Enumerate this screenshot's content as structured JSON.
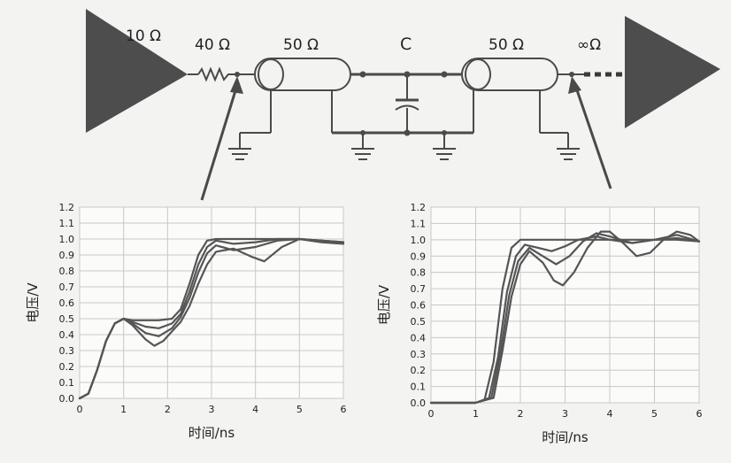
{
  "circuit": {
    "driver_resistance": "10 Ω",
    "series_resistor": "40 Ω",
    "line1_impedance": "50 Ω",
    "capacitor": "C",
    "line2_impedance": "50 Ω",
    "load_impedance": "∞Ω"
  },
  "chart_data": [
    {
      "type": "line",
      "xlabel": "时间/ns",
      "ylabel": "电压/V",
      "xlim": [
        0,
        6
      ],
      "ylim": [
        0,
        1.2
      ],
      "xticks": [
        "0",
        "1",
        "2",
        "3",
        "4",
        "5",
        "6"
      ],
      "yticks": [
        "0.0",
        "0.1",
        "0.2",
        "0.3",
        "0.4",
        "0.5",
        "0.6",
        "0.7",
        "0.8",
        "0.9",
        "1.0",
        "1.1",
        "1.2"
      ],
      "grid": true,
      "series": [
        {
          "x": [
            0,
            0.2,
            0.4,
            0.6,
            0.8,
            1.0,
            1.2,
            1.5,
            1.8,
            2.1,
            2.3,
            2.5,
            2.7,
            2.9,
            3.1,
            3.5,
            4.0,
            4.5,
            5.0,
            5.5,
            6.0
          ],
          "y": [
            0,
            0.03,
            0.18,
            0.36,
            0.47,
            0.5,
            0.49,
            0.49,
            0.49,
            0.5,
            0.56,
            0.72,
            0.9,
            0.99,
            1.0,
            1.0,
            1.0,
            1.0,
            1.0,
            0.99,
            0.98
          ]
        },
        {
          "x": [
            0,
            0.2,
            0.4,
            0.6,
            0.8,
            1.0,
            1.2,
            1.5,
            1.8,
            2.1,
            2.3,
            2.5,
            2.7,
            2.9,
            3.1,
            3.5,
            4.0,
            4.5,
            5.0,
            5.5,
            6.0
          ],
          "y": [
            0,
            0.03,
            0.18,
            0.36,
            0.47,
            0.5,
            0.48,
            0.45,
            0.44,
            0.47,
            0.53,
            0.67,
            0.84,
            0.95,
            0.99,
            0.97,
            0.98,
            1.0,
            1.0,
            0.99,
            0.98
          ]
        },
        {
          "x": [
            0,
            0.2,
            0.4,
            0.6,
            0.8,
            1.0,
            1.2,
            1.5,
            1.8,
            2.1,
            2.3,
            2.5,
            2.7,
            2.9,
            3.1,
            3.5,
            4.0,
            4.5,
            5.0,
            5.5,
            6.0
          ],
          "y": [
            0,
            0.03,
            0.18,
            0.36,
            0.47,
            0.5,
            0.47,
            0.41,
            0.39,
            0.44,
            0.51,
            0.63,
            0.79,
            0.91,
            0.96,
            0.93,
            0.95,
            0.99,
            1.0,
            0.99,
            0.98
          ]
        },
        {
          "x": [
            0,
            0.2,
            0.4,
            0.6,
            0.8,
            1.0,
            1.2,
            1.5,
            1.7,
            1.9,
            2.1,
            2.3,
            2.5,
            2.7,
            2.9,
            3.1,
            3.5,
            3.9,
            4.2,
            4.6,
            5.0,
            5.5,
            6.0
          ],
          "y": [
            0,
            0.03,
            0.18,
            0.36,
            0.47,
            0.5,
            0.46,
            0.37,
            0.33,
            0.36,
            0.42,
            0.48,
            0.58,
            0.72,
            0.84,
            0.92,
            0.94,
            0.89,
            0.86,
            0.95,
            1.0,
            0.98,
            0.97
          ]
        }
      ]
    },
    {
      "type": "line",
      "xlabel": "时间/ns",
      "ylabel": "电压/V",
      "xlim": [
        0,
        6
      ],
      "ylim": [
        0,
        1.2
      ],
      "xticks": [
        "0",
        "1",
        "2",
        "3",
        "4",
        "5",
        "6"
      ],
      "yticks": [
        "0.0",
        "0.1",
        "0.2",
        "0.3",
        "0.4",
        "0.5",
        "0.6",
        "0.7",
        "0.8",
        "0.9",
        "1.0",
        "1.1",
        "1.2"
      ],
      "grid": true,
      "series": [
        {
          "x": [
            0,
            1.0,
            1.2,
            1.4,
            1.6,
            1.8,
            2.0,
            2.2,
            2.5,
            3.0,
            3.5,
            4.0,
            4.5,
            5.0,
            5.5,
            6.0
          ],
          "y": [
            0,
            0,
            0.02,
            0.25,
            0.7,
            0.95,
            1.0,
            1.0,
            1.0,
            1.0,
            1.0,
            1.0,
            1.0,
            1.0,
            1.0,
            0.99
          ]
        },
        {
          "x": [
            0,
            1.0,
            1.3,
            1.5,
            1.7,
            1.9,
            2.1,
            2.4,
            2.7,
            3.0,
            3.3,
            3.7,
            4.0,
            4.5,
            5.0,
            5.5,
            6.0
          ],
          "y": [
            0,
            0,
            0.03,
            0.28,
            0.68,
            0.9,
            0.97,
            0.95,
            0.93,
            0.96,
            1.0,
            1.02,
            1.0,
            0.98,
            1.0,
            1.01,
            0.99
          ]
        },
        {
          "x": [
            0,
            1.0,
            1.35,
            1.55,
            1.75,
            1.95,
            2.2,
            2.5,
            2.8,
            3.1,
            3.4,
            3.7,
            4.0,
            4.5,
            5.0,
            5.5,
            6.0
          ],
          "y": [
            0,
            0,
            0.03,
            0.3,
            0.66,
            0.87,
            0.95,
            0.9,
            0.85,
            0.9,
            0.99,
            1.04,
            1.02,
            0.98,
            1.0,
            1.03,
            0.99
          ]
        },
        {
          "x": [
            0,
            1.0,
            1.4,
            1.6,
            1.8,
            2.0,
            2.2,
            2.5,
            2.75,
            2.95,
            3.2,
            3.5,
            3.8,
            4.0,
            4.3,
            4.6,
            4.9,
            5.2,
            5.5,
            5.8,
            6.0
          ],
          "y": [
            0,
            0,
            0.03,
            0.32,
            0.65,
            0.85,
            0.93,
            0.86,
            0.75,
            0.72,
            0.8,
            0.95,
            1.05,
            1.05,
            0.98,
            0.9,
            0.92,
            1.0,
            1.05,
            1.03,
            0.99
          ]
        }
      ]
    }
  ]
}
